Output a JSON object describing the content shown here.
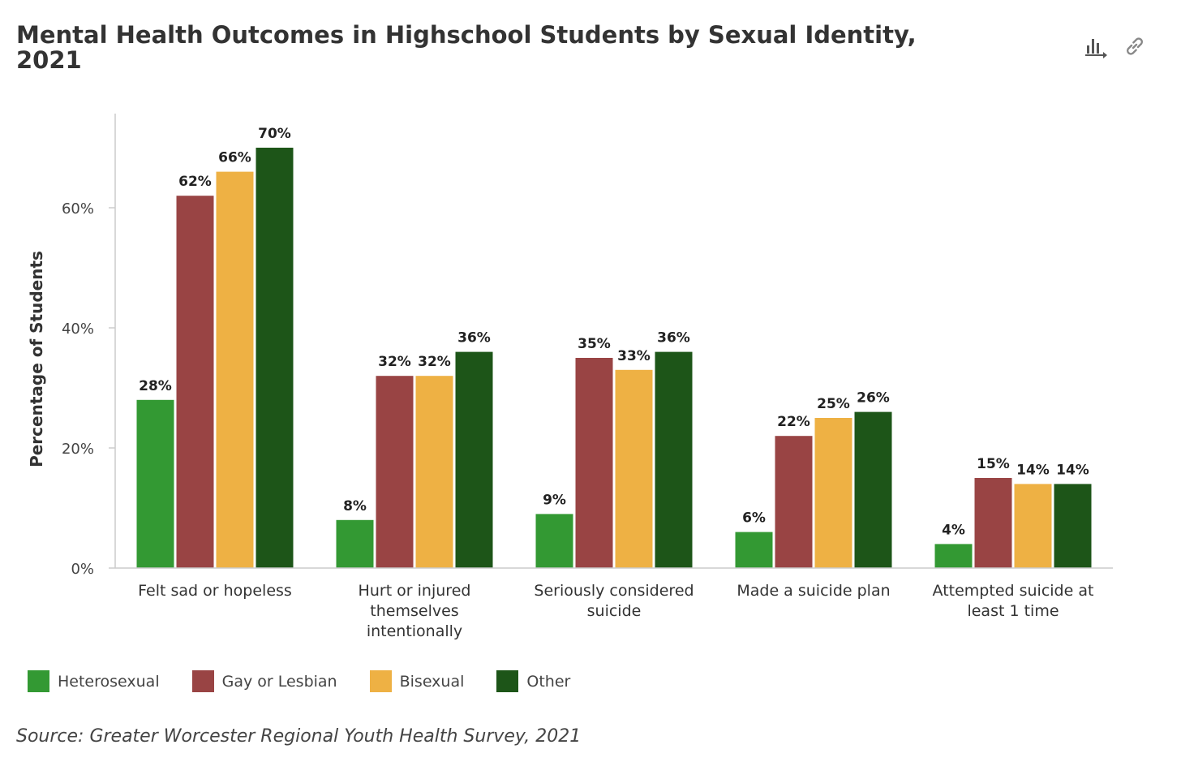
{
  "title": "Mental Health Outcomes in Highschool Students by Sexual Identity, 2021",
  "source": "Source: Greater Worcester Regional Youth Health Survey, 2021",
  "toolbar": {
    "icons": [
      "chart-data-icon",
      "link-icon"
    ]
  },
  "colors": {
    "Heterosexual": "#339933",
    "Gay or Lesbian": "#994444",
    "Bisexual": "#EEB144",
    "Other": "#1D5518"
  },
  "chart_data": {
    "type": "bar",
    "title": "Mental Health Outcomes in Highschool Students by Sexual Identity, 2021",
    "xlabel": "",
    "ylabel": "Percentage of Students",
    "ylim": [
      0,
      75
    ],
    "yticks": [
      0,
      20,
      40,
      60
    ],
    "ytick_labels": [
      "0%",
      "20%",
      "40%",
      "60%"
    ],
    "grid": false,
    "legend_position": "bottom-left",
    "categories": [
      "Felt sad or hopeless",
      "Hurt or injured themselves intentionally",
      "Seriously considered suicide",
      "Made a suicide plan",
      "Attempted suicide at least 1 time"
    ],
    "category_label_lines": [
      [
        "Felt sad or hopeless"
      ],
      [
        "Hurt or injured",
        "themselves",
        "intentionally"
      ],
      [
        "Seriously considered",
        "suicide"
      ],
      [
        "Made a suicide plan"
      ],
      [
        "Attempted suicide at",
        "least 1 time"
      ]
    ],
    "series": [
      {
        "name": "Heterosexual",
        "values": [
          28,
          8,
          9,
          6,
          4
        ]
      },
      {
        "name": "Gay or Lesbian",
        "values": [
          62,
          32,
          35,
          22,
          15
        ]
      },
      {
        "name": "Bisexual",
        "values": [
          66,
          32,
          33,
          25,
          14
        ]
      },
      {
        "name": "Other",
        "values": [
          70,
          36,
          36,
          26,
          14
        ]
      }
    ],
    "value_suffix": "%"
  }
}
